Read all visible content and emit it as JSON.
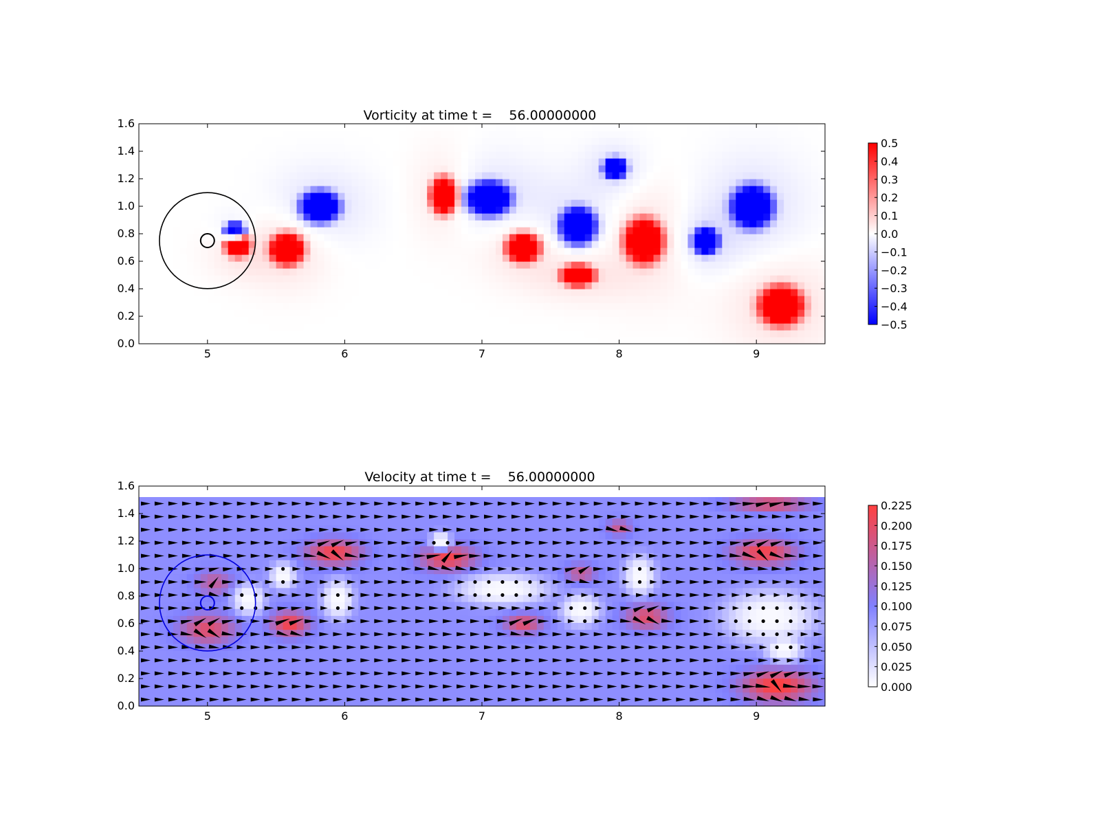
{
  "chart_data": [
    {
      "type": "heatmap",
      "title": "Vorticity at time t =    56.00000000",
      "xlabel": "",
      "ylabel": "",
      "xlim": [
        4.5,
        9.5
      ],
      "ylim": [
        0.0,
        1.6
      ],
      "x_ticks": [
        "5",
        "6",
        "7",
        "8",
        "9"
      ],
      "y_ticks": [
        "0.0",
        "0.2",
        "0.4",
        "0.6",
        "0.8",
        "1.0",
        "1.2",
        "1.4",
        "1.6"
      ],
      "grid": false,
      "colormap": [
        "#0000ff",
        "#ffffff",
        "#ff0000"
      ],
      "colorbar": {
        "min": -0.5,
        "max": 0.5,
        "ticks": [
          "−0.5",
          "−0.4",
          "−0.3",
          "−0.2",
          "−0.1",
          "0.0",
          "0.1",
          "0.2",
          "0.3",
          "0.4",
          "0.5"
        ]
      },
      "circles": [
        {
          "cx": 5.0,
          "cy": 0.75,
          "r": 0.35,
          "color": "#000000"
        },
        {
          "cx": 5.0,
          "cy": 0.75,
          "r": 0.05,
          "color": "#000000"
        }
      ],
      "vortices": [
        {
          "x": 5.22,
          "y": 0.72,
          "rx": 0.1,
          "ry": 0.09,
          "w": 0.55
        },
        {
          "x": 5.2,
          "y": 0.82,
          "rx": 0.08,
          "ry": 0.07,
          "w": -0.55
        },
        {
          "x": 5.58,
          "y": 0.69,
          "rx": 0.13,
          "ry": 0.12,
          "w": 0.6
        },
        {
          "x": 5.82,
          "y": 1.0,
          "rx": 0.15,
          "ry": 0.12,
          "w": -0.6
        },
        {
          "x": 6.72,
          "y": 1.08,
          "rx": 0.1,
          "ry": 0.14,
          "w": 0.6
        },
        {
          "x": 7.05,
          "y": 1.06,
          "rx": 0.17,
          "ry": 0.13,
          "w": -0.6
        },
        {
          "x": 7.3,
          "y": 0.7,
          "rx": 0.13,
          "ry": 0.11,
          "w": 0.6
        },
        {
          "x": 7.7,
          "y": 0.86,
          "rx": 0.14,
          "ry": 0.14,
          "w": -0.6
        },
        {
          "x": 7.7,
          "y": 0.5,
          "rx": 0.13,
          "ry": 0.08,
          "w": 0.6
        },
        {
          "x": 7.97,
          "y": 1.28,
          "rx": 0.09,
          "ry": 0.08,
          "w": -0.6
        },
        {
          "x": 8.18,
          "y": 0.75,
          "rx": 0.15,
          "ry": 0.17,
          "w": 0.6
        },
        {
          "x": 8.63,
          "y": 0.75,
          "rx": 0.1,
          "ry": 0.1,
          "w": -0.6
        },
        {
          "x": 8.97,
          "y": 1.0,
          "rx": 0.16,
          "ry": 0.16,
          "w": -0.6
        },
        {
          "x": 9.18,
          "y": 0.28,
          "rx": 0.17,
          "ry": 0.15,
          "w": 0.6
        }
      ]
    },
    {
      "type": "heatmap",
      "title": "Velocity at time t =    56.00000000",
      "xlabel": "",
      "ylabel": "",
      "xlim": [
        4.5,
        9.5
      ],
      "ylim": [
        0.0,
        1.6
      ],
      "data_ylim": [
        0.0,
        1.52
      ],
      "x_ticks": [
        "5",
        "6",
        "7",
        "8",
        "9"
      ],
      "y_ticks": [
        "0.0",
        "0.2",
        "0.4",
        "0.6",
        "0.8",
        "1.0",
        "1.2",
        "1.4",
        "1.6"
      ],
      "grid": false,
      "colormap": [
        "#ffffff",
        "#8080ff",
        "#ff4040"
      ],
      "colorbar": {
        "min": 0.0,
        "max": 0.225,
        "ticks": [
          "0.000",
          "0.025",
          "0.050",
          "0.075",
          "0.100",
          "0.125",
          "0.150",
          "0.175",
          "0.200",
          "0.225"
        ]
      },
      "base_speed": 0.1,
      "quiver_marker_color": "#000000",
      "circles": [
        {
          "cx": 5.0,
          "cy": 0.75,
          "r": 0.35,
          "color": "#0000dd"
        },
        {
          "cx": 5.0,
          "cy": 0.75,
          "r": 0.05,
          "color": "#0000dd"
        }
      ],
      "fast_regions": [
        {
          "x": 5.0,
          "y": 0.56,
          "rx": 0.22,
          "ry": 0.12,
          "s": 0.2
        },
        {
          "x": 5.05,
          "y": 0.9,
          "rx": 0.15,
          "ry": 0.1,
          "s": 0.17
        },
        {
          "x": 5.6,
          "y": 0.6,
          "rx": 0.15,
          "ry": 0.1,
          "s": 0.22
        },
        {
          "x": 5.92,
          "y": 1.12,
          "rx": 0.22,
          "ry": 0.1,
          "s": 0.22
        },
        {
          "x": 6.75,
          "y": 1.08,
          "rx": 0.22,
          "ry": 0.1,
          "s": 0.22
        },
        {
          "x": 7.3,
          "y": 0.6,
          "rx": 0.15,
          "ry": 0.08,
          "s": 0.2
        },
        {
          "x": 7.72,
          "y": 0.97,
          "rx": 0.12,
          "ry": 0.07,
          "s": 0.18
        },
        {
          "x": 8.2,
          "y": 0.65,
          "rx": 0.17,
          "ry": 0.1,
          "s": 0.2
        },
        {
          "x": 8.0,
          "y": 1.3,
          "rx": 0.1,
          "ry": 0.06,
          "s": 0.18
        },
        {
          "x": 9.05,
          "y": 1.12,
          "rx": 0.25,
          "ry": 0.1,
          "s": 0.22
        },
        {
          "x": 9.1,
          "y": 1.47,
          "rx": 0.3,
          "ry": 0.06,
          "s": 0.2
        },
        {
          "x": 9.15,
          "y": 0.15,
          "rx": 0.28,
          "ry": 0.13,
          "s": 0.23
        }
      ],
      "slow_regions": [
        {
          "x": 5.3,
          "y": 0.78,
          "rx": 0.12,
          "ry": 0.12
        },
        {
          "x": 5.55,
          "y": 0.95,
          "rx": 0.1,
          "ry": 0.1
        },
        {
          "x": 5.95,
          "y": 0.78,
          "rx": 0.12,
          "ry": 0.15
        },
        {
          "x": 6.7,
          "y": 1.2,
          "rx": 0.08,
          "ry": 0.07
        },
        {
          "x": 7.15,
          "y": 0.85,
          "rx": 0.35,
          "ry": 0.12
        },
        {
          "x": 7.72,
          "y": 0.7,
          "rx": 0.15,
          "ry": 0.12
        },
        {
          "x": 8.15,
          "y": 0.95,
          "rx": 0.12,
          "ry": 0.15
        },
        {
          "x": 9.1,
          "y": 0.65,
          "rx": 0.35,
          "ry": 0.2
        },
        {
          "x": 9.2,
          "y": 0.42,
          "rx": 0.15,
          "ry": 0.1
        }
      ]
    }
  ]
}
